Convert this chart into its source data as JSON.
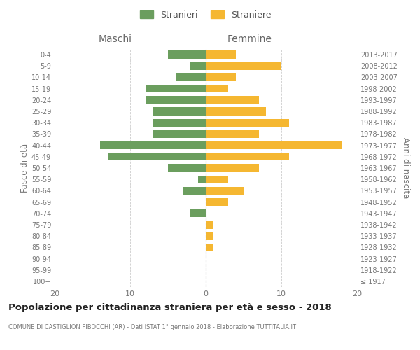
{
  "age_groups": [
    "100+",
    "95-99",
    "90-94",
    "85-89",
    "80-84",
    "75-79",
    "70-74",
    "65-69",
    "60-64",
    "55-59",
    "50-54",
    "45-49",
    "40-44",
    "35-39",
    "30-34",
    "25-29",
    "20-24",
    "15-19",
    "10-14",
    "5-9",
    "0-4"
  ],
  "birth_years": [
    "≤ 1917",
    "1918-1922",
    "1923-1927",
    "1928-1932",
    "1933-1937",
    "1938-1942",
    "1943-1947",
    "1948-1952",
    "1953-1957",
    "1958-1962",
    "1963-1967",
    "1968-1972",
    "1973-1977",
    "1978-1982",
    "1983-1987",
    "1988-1992",
    "1993-1997",
    "1998-2002",
    "2003-2007",
    "2008-2012",
    "2013-2017"
  ],
  "maschi": [
    0,
    0,
    0,
    0,
    0,
    0,
    2,
    0,
    3,
    1,
    5,
    13,
    14,
    7,
    7,
    7,
    8,
    8,
    4,
    2,
    5
  ],
  "femmine": [
    0,
    0,
    0,
    1,
    1,
    1,
    0,
    3,
    5,
    3,
    7,
    11,
    18,
    7,
    11,
    8,
    7,
    3,
    4,
    10,
    4
  ],
  "color_maschi": "#6b9e5e",
  "color_femmine": "#f5b731",
  "title": "Popolazione per cittadinanza straniera per età e sesso - 2018",
  "subtitle": "COMUNE DI CASTIGLION FIBOCCHI (AR) - Dati ISTAT 1° gennaio 2018 - Elaborazione TUTTITALIA.IT",
  "xlabel_left": "Maschi",
  "xlabel_right": "Femmine",
  "ylabel_left": "Fasce di età",
  "ylabel_right": "Anni di nascita",
  "xlim": 20,
  "legend_stranieri": "Stranieri",
  "legend_straniere": "Straniere",
  "background_color": "#ffffff",
  "grid_color": "#cccccc"
}
